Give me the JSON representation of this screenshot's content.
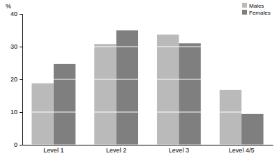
{
  "chart_data": {
    "type": "bar",
    "ylabel": "%",
    "categories": [
      "Level 1",
      "Level 2",
      "Level 3",
      "Level 4/5"
    ],
    "series": [
      {
        "name": "Males",
        "color": "#bababa",
        "values": [
          18.8,
          30.8,
          33.7,
          16.8
        ]
      },
      {
        "name": "Females",
        "color": "#7f7f7f",
        "values": [
          24.7,
          35.0,
          31.0,
          9.4
        ]
      }
    ],
    "ylim": [
      0,
      40
    ],
    "yticks": [
      0,
      10,
      20,
      30,
      40
    ],
    "grid": true,
    "legend": "top right"
  }
}
